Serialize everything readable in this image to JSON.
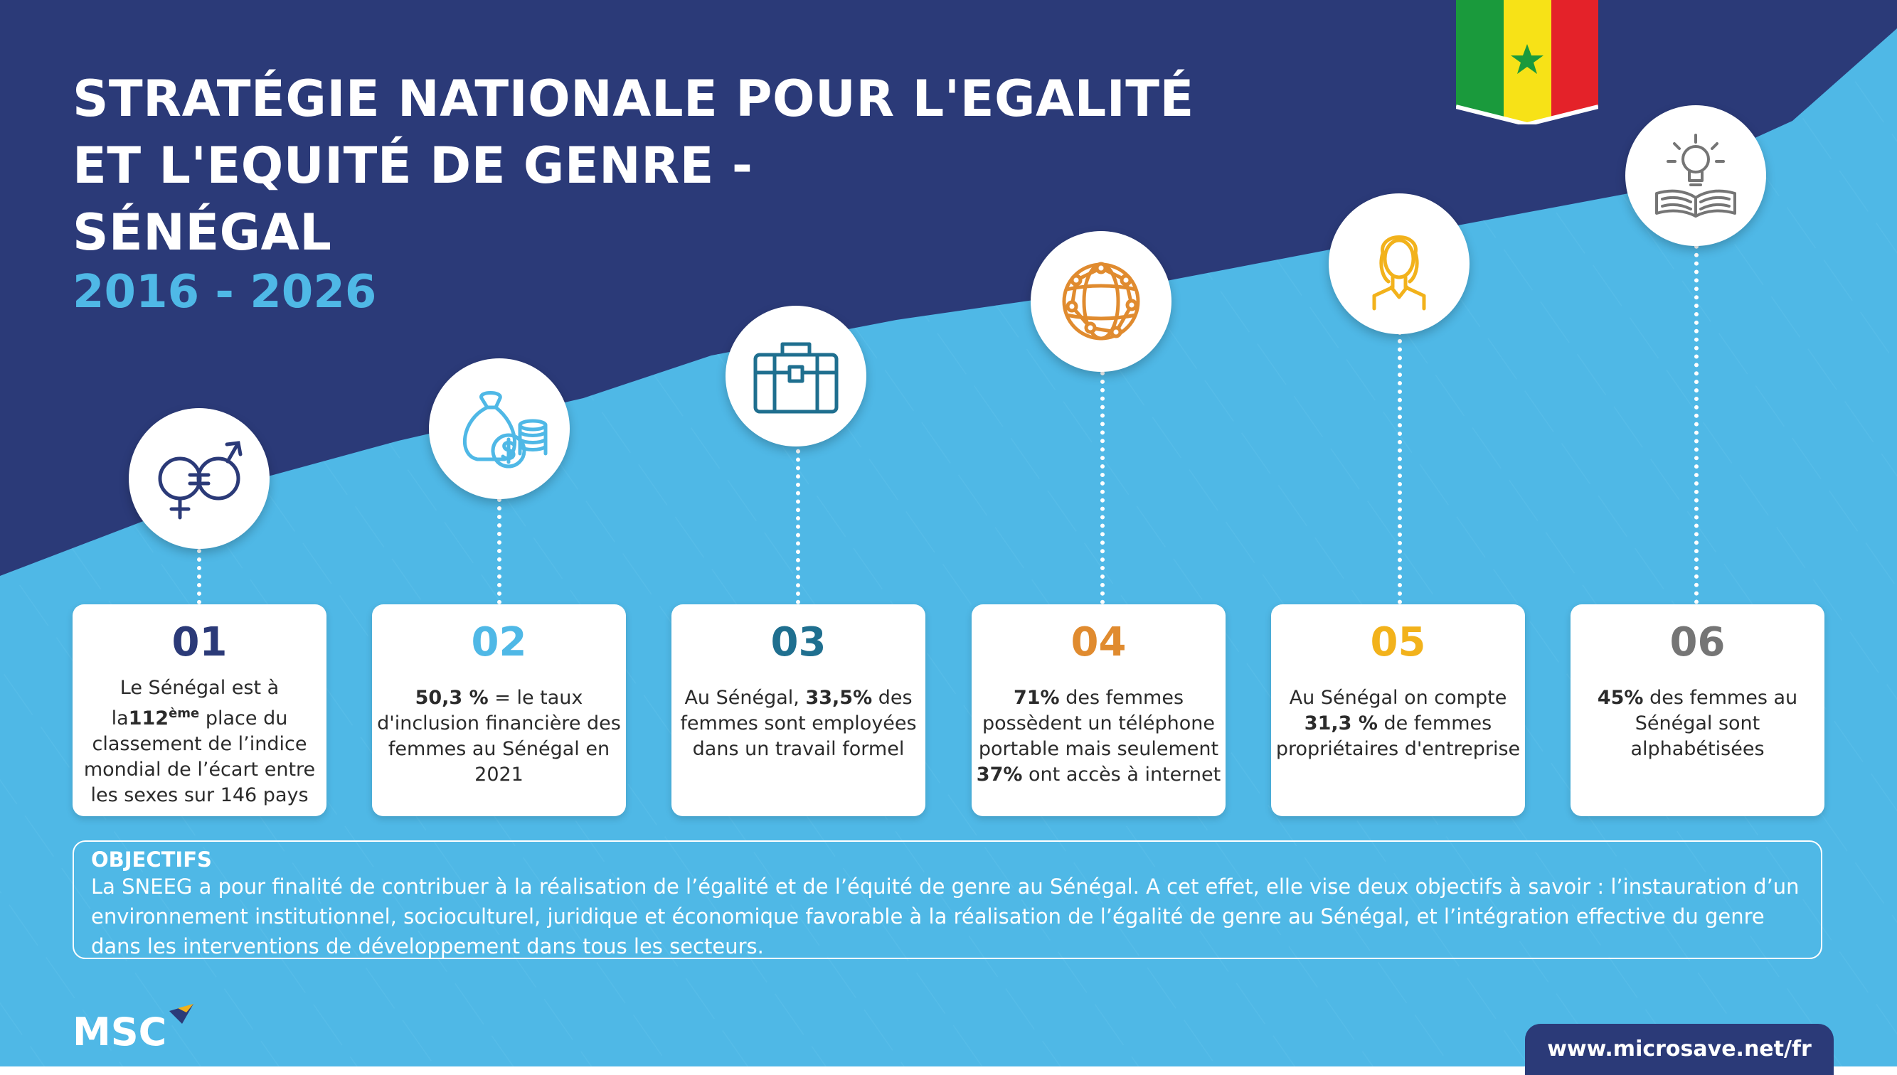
{
  "title": {
    "line1": "STRATÉGIE NATIONALE POUR L'EGALITÉ",
    "line2": "ET L'EQUITÉ DE GENRE -",
    "line3": "SÉNÉGAL",
    "years": "2016 - 2026"
  },
  "colors": {
    "navy": "#2b3a78",
    "sky": "#4fb8e6",
    "c01": "#2b3a78",
    "c02": "#4fb8e6",
    "c03": "#1f6f8f",
    "c04": "#e08b2f",
    "c05": "#f2b21b",
    "c06": "#757575"
  },
  "cards": [
    {
      "num": "01",
      "icon": "gender-equality-icon",
      "parts": [
        {
          "t": "Le  Sénégal est à la",
          "b": false
        },
        {
          "t": "112",
          "b": true
        },
        {
          "t": "ème",
          "b": true,
          "sup": true
        },
        {
          "t": " place du classement de l’indice mondial de l’écart entre les sexes sur 146 pays",
          "b": false
        }
      ]
    },
    {
      "num": "02",
      "icon": "money-bag-icon",
      "parts": [
        {
          "t": "50,3 %",
          "b": true
        },
        {
          "t": " = le taux d'inclusion financière des femmes au Sénégal en 2021",
          "b": false
        }
      ]
    },
    {
      "num": "03",
      "icon": "briefcase-icon",
      "parts": [
        {
          "t": "Au Sénégal, ",
          "b": false
        },
        {
          "t": "33,5%",
          "b": true
        },
        {
          "t": " des femmes sont employées dans un travail formel",
          "b": false
        }
      ]
    },
    {
      "num": "04",
      "icon": "globe-network-icon",
      "parts": [
        {
          "t": "71%",
          "b": true
        },
        {
          "t": " des femmes possèdent un téléphone portable mais seulement ",
          "b": false
        },
        {
          "t": "37%",
          "b": true
        },
        {
          "t": " ont accès à internet",
          "b": false
        }
      ]
    },
    {
      "num": "05",
      "icon": "woman-icon",
      "parts": [
        {
          "t": "Au Sénégal on compte ",
          "b": false
        },
        {
          "t": "31,3 %",
          "b": true
        },
        {
          "t": " de femmes propriétaires d'entreprise",
          "b": false
        }
      ]
    },
    {
      "num": "06",
      "icon": "lightbulb-book-icon",
      "parts": [
        {
          "t": "45%",
          "b": true
        },
        {
          "t": " des femmes au Sénégal sont alphabétisées",
          "b": false
        }
      ]
    }
  ],
  "objectives": {
    "heading": "OBJECTIFS",
    "text": "La SNEEG a pour finalité de contribuer à la réalisation de l’égalité et de l’équité de genre au Sénégal. A cet effet, elle vise deux objectifs à savoir : l’instauration d’un environnement institutionnel, socioculturel, juridique et économique favorable à la réalisation de l’égalité de genre au Sénégal,  et l’intégration effective du genre dans les interventions de développement dans tous les secteurs."
  },
  "footer": {
    "logo_text": "MSC",
    "url": "www.microsave.net/fr"
  }
}
